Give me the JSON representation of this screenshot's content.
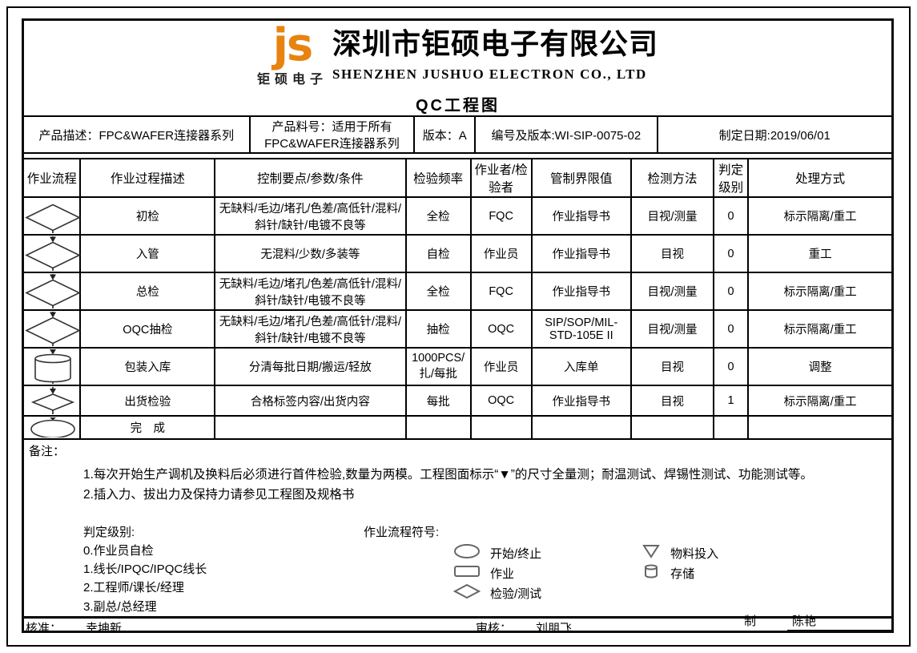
{
  "header": {
    "logo_text": "js",
    "logo_subtext": "钜硕电子",
    "company_cn": "深圳市钜硕电子有限公司",
    "company_en": "SHENZHEN JUSHUO ELECTRON CO., LTD",
    "doc_title": "QC工程图",
    "logo_color": "#E8830F"
  },
  "info_bar": {
    "product_desc": "产品描述：FPC&WAFER连接器系列",
    "part_no": "产品料号：适用于所有\nFPC&WAFER连接器系列",
    "version": "版本：A",
    "doc_no": "编号及版本:WI-SIP-0075-02",
    "date": "制定日期:2019/06/01"
  },
  "main_table": {
    "columns": [
      "作业流程",
      "作业过程描述",
      "控制要点/参数/条件",
      "检验频率",
      "作业者/检验者",
      "管制界限值",
      "检测方法",
      "判定级别",
      "处理方式"
    ],
    "rows": [
      {
        "shape": "diamond",
        "process": "初检",
        "control": "无缺料/毛边/堵孔/色差/高低针/混料/斜针/缺针/电镀不良等",
        "frequency": "全检",
        "operator": "FQC",
        "limit": "作业指导书",
        "method": "目视/测量",
        "level": "0",
        "handling": "标示隔离/重工"
      },
      {
        "shape": "diamond",
        "process": "入管",
        "control": "无混料/少数/多装等",
        "frequency": "自检",
        "operator": "作业员",
        "limit": "作业指导书",
        "method": "目视",
        "level": "0",
        "handling": "重工"
      },
      {
        "shape": "diamond",
        "process": "总检",
        "control": "无缺料/毛边/堵孔/色差/高低针/混料/斜针/缺针/电镀不良等",
        "frequency": "全检",
        "operator": "FQC",
        "limit": "作业指导书",
        "method": "目视/测量",
        "level": "0",
        "handling": "标示隔离/重工"
      },
      {
        "shape": "diamond",
        "process": "OQC抽检",
        "control": "无缺料/毛边/堵孔/色差/高低针/混料/斜针/缺针/电镀不良等",
        "frequency": "抽检",
        "operator": "OQC",
        "limit": "SIP/SOP/MIL-STD-105E II",
        "method": "目视/测量",
        "level": "0",
        "handling": "标示隔离/重工"
      },
      {
        "shape": "cylinder",
        "process": "包装入库",
        "control": "分清每批日期/搬运/轻放",
        "frequency": "1000PCS/扎/每批",
        "operator": "作业员",
        "limit": "入库单",
        "method": "目视",
        "level": "0",
        "handling": "调整"
      },
      {
        "shape": "diamond-small",
        "process": "出货检验",
        "control": "合格标签内容/出货内容",
        "frequency": "每批",
        "operator": "OQC",
        "limit": "作业指导书",
        "method": "目视",
        "level": "1",
        "handling": "标示隔离/重工"
      },
      {
        "shape": "ellipse",
        "process": "完　成",
        "control": "",
        "frequency": "",
        "operator": "",
        "limit": "",
        "method": "",
        "level": "",
        "handling": ""
      }
    ]
  },
  "remarks": {
    "label": "备注：",
    "note1": "1.每次开始生产调机及换料后必须进行首件检验,数量为两模。工程图面标示“▼”的尺寸全量测；耐温测试、焊锡性测试、功能测试等。",
    "note2": "2.插入力、拔出力及保持力请参见工程图及规格书",
    "judgment_title": "判定级别:",
    "judgment_levels": [
      "0.作业员自检",
      "1.线长/IPQC/IPQC线长",
      "2.工程师/课长/经理",
      "3.副总/总经理"
    ],
    "symbols_title": "作业流程符号:",
    "symbols": [
      {
        "shape": "ellipse",
        "label": "开始/终止"
      },
      {
        "shape": "rectangle",
        "label": "作业"
      },
      {
        "shape": "diamond",
        "label": "检验/测试"
      },
      {
        "shape": "triangle-down",
        "label": "物料投入"
      },
      {
        "shape": "cylinder",
        "label": "存储"
      }
    ]
  },
  "approval": {
    "approve_label": "核准：",
    "approve_name": "幸坤新",
    "review_label": "审核：",
    "review_name": "刘朋飞",
    "draft_label": "制订：",
    "draft_name": "陈艳"
  }
}
